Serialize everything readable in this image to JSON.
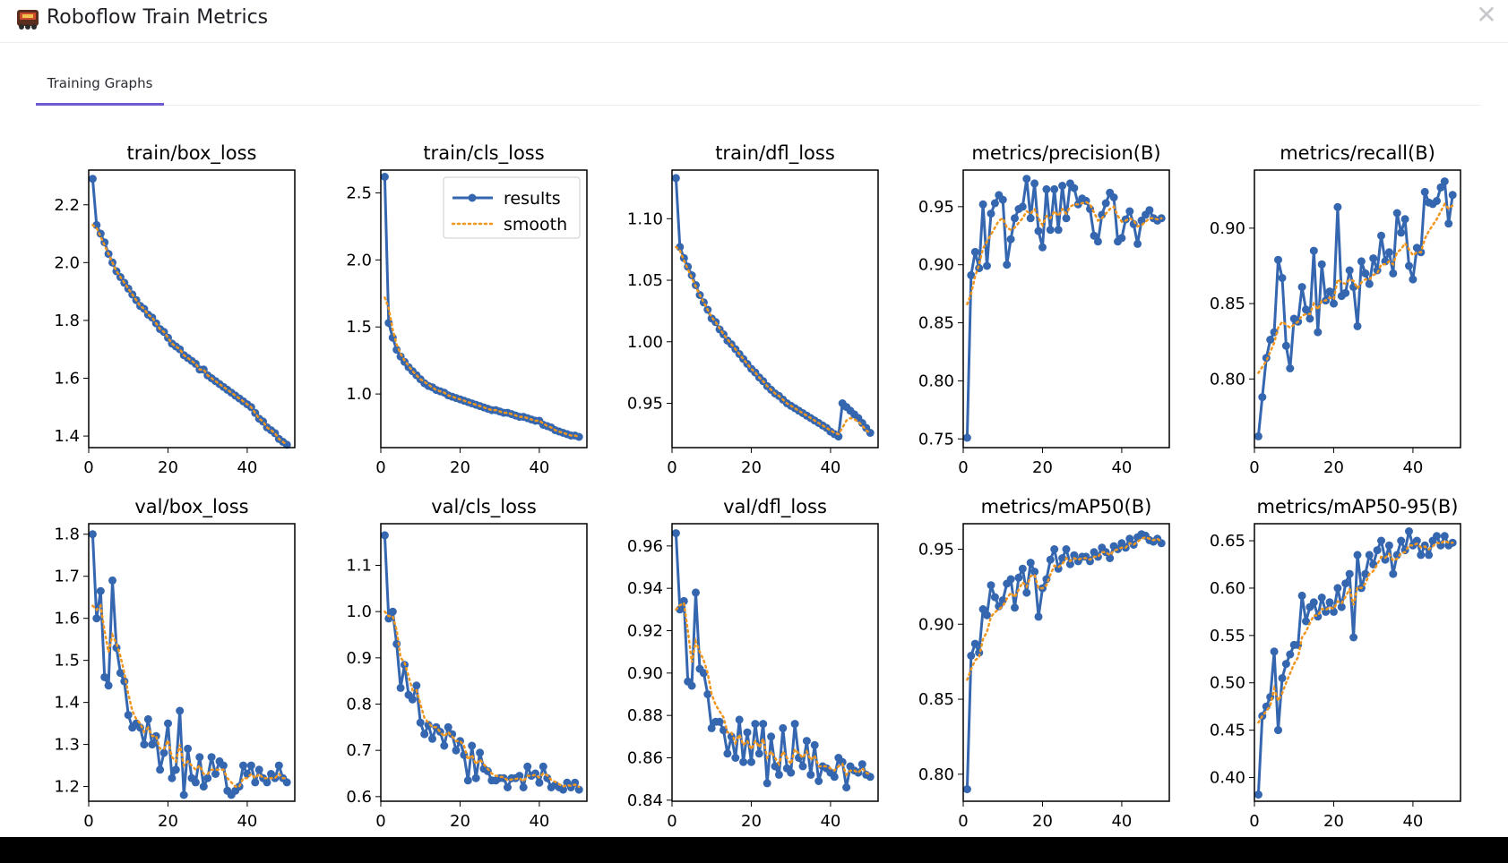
{
  "window": {
    "title": "Roboflow Train Metrics",
    "close_label": "✕",
    "app_icon": "roboflow-logo-icon"
  },
  "tabs": [
    {
      "label": "Training Graphs",
      "active": true
    }
  ],
  "colors": {
    "results": "#3566b0",
    "smooth": "#f0961e",
    "accent": "#6f5ad6"
  },
  "legend": {
    "results_label": "results",
    "smooth_label": "smooth"
  },
  "chart_data": [
    {
      "type": "line",
      "title": "train/box_loss",
      "xlim": [
        0,
        52
      ],
      "ylim": [
        1.36,
        2.32
      ],
      "xticks": [
        0,
        20,
        40
      ],
      "yticks": [
        1.4,
        1.6,
        1.8,
        2.0,
        2.2
      ],
      "ytick_labels": [
        "1.4",
        "1.6",
        "1.8",
        "2.0",
        "2.2"
      ],
      "results": [
        2.29,
        2.13,
        2.1,
        2.07,
        2.03,
        2.0,
        1.97,
        1.95,
        1.93,
        1.91,
        1.89,
        1.87,
        1.85,
        1.84,
        1.82,
        1.81,
        1.79,
        1.77,
        1.76,
        1.74,
        1.72,
        1.71,
        1.7,
        1.68,
        1.67,
        1.66,
        1.65,
        1.63,
        1.63,
        1.61,
        1.6,
        1.59,
        1.58,
        1.57,
        1.56,
        1.55,
        1.54,
        1.53,
        1.52,
        1.51,
        1.5,
        1.48,
        1.46,
        1.45,
        1.43,
        1.42,
        1.41,
        1.39,
        1.38,
        1.37
      ],
      "smooth": [
        2.13,
        2.12,
        2.09,
        2.06,
        2.03,
        2.0,
        1.97,
        1.95,
        1.93,
        1.91,
        1.89,
        1.87,
        1.85,
        1.84,
        1.82,
        1.81,
        1.79,
        1.77,
        1.76,
        1.74,
        1.72,
        1.71,
        1.7,
        1.68,
        1.67,
        1.66,
        1.65,
        1.63,
        1.63,
        1.61,
        1.6,
        1.59,
        1.58,
        1.57,
        1.56,
        1.55,
        1.54,
        1.53,
        1.52,
        1.51,
        1.5,
        1.48,
        1.46,
        1.45,
        1.43,
        1.42,
        1.41,
        1.39,
        1.38,
        1.37
      ]
    },
    {
      "type": "line",
      "title": "train/cls_loss",
      "xlim": [
        0,
        52
      ],
      "ylim": [
        0.6,
        2.67
      ],
      "xticks": [
        0,
        20,
        40
      ],
      "yticks": [
        1.0,
        1.5,
        2.0,
        2.5
      ],
      "ytick_labels": [
        "1.0",
        "1.5",
        "2.0",
        "2.5"
      ],
      "legend": true,
      "results": [
        2.62,
        1.53,
        1.42,
        1.33,
        1.28,
        1.24,
        1.2,
        1.17,
        1.14,
        1.11,
        1.08,
        1.06,
        1.05,
        1.03,
        1.02,
        1.01,
        0.99,
        0.98,
        0.97,
        0.96,
        0.95,
        0.94,
        0.93,
        0.92,
        0.91,
        0.9,
        0.89,
        0.88,
        0.88,
        0.87,
        0.86,
        0.86,
        0.85,
        0.84,
        0.83,
        0.83,
        0.82,
        0.81,
        0.8,
        0.8,
        0.77,
        0.76,
        0.75,
        0.73,
        0.72,
        0.71,
        0.7,
        0.69,
        0.69,
        0.68
      ],
      "smooth": [
        1.72,
        1.64,
        1.48,
        1.37,
        1.3,
        1.25,
        1.21,
        1.17,
        1.14,
        1.11,
        1.09,
        1.07,
        1.05,
        1.03,
        1.02,
        1.01,
        0.99,
        0.98,
        0.97,
        0.96,
        0.95,
        0.94,
        0.93,
        0.92,
        0.91,
        0.9,
        0.89,
        0.88,
        0.88,
        0.87,
        0.86,
        0.86,
        0.85,
        0.84,
        0.83,
        0.83,
        0.82,
        0.81,
        0.8,
        0.8,
        0.78,
        0.76,
        0.75,
        0.73,
        0.72,
        0.71,
        0.7,
        0.69,
        0.69,
        0.68
      ]
    },
    {
      "type": "line",
      "title": "train/dfl_loss",
      "xlim": [
        0,
        52
      ],
      "ylim": [
        0.914,
        1.1395
      ],
      "xticks": [
        0,
        20,
        40
      ],
      "yticks": [
        0.95,
        1.0,
        1.05,
        1.1
      ],
      "ytick_labels": [
        "0.95",
        "1.00",
        "1.05",
        "1.10"
      ],
      "results": [
        1.133,
        1.077,
        1.068,
        1.061,
        1.054,
        1.046,
        1.038,
        1.032,
        1.026,
        1.019,
        1.016,
        1.01,
        1.006,
        1.001,
        0.998,
        0.994,
        0.99,
        0.986,
        0.982,
        0.978,
        0.975,
        0.971,
        0.968,
        0.964,
        0.961,
        0.958,
        0.956,
        0.953,
        0.95,
        0.948,
        0.946,
        0.944,
        0.942,
        0.94,
        0.938,
        0.936,
        0.934,
        0.932,
        0.93,
        0.927,
        0.925,
        0.923,
        0.95,
        0.947,
        0.944,
        0.941,
        0.938,
        0.934,
        0.93,
        0.926
      ],
      "smooth": [
        1.077,
        1.074,
        1.066,
        1.059,
        1.052,
        1.045,
        1.038,
        1.032,
        1.026,
        1.02,
        1.016,
        1.011,
        1.006,
        1.002,
        0.998,
        0.994,
        0.99,
        0.986,
        0.982,
        0.978,
        0.975,
        0.971,
        0.968,
        0.964,
        0.961,
        0.958,
        0.956,
        0.953,
        0.95,
        0.948,
        0.946,
        0.944,
        0.942,
        0.94,
        0.938,
        0.936,
        0.934,
        0.932,
        0.93,
        0.928,
        0.926,
        0.925,
        0.93,
        0.936,
        0.938,
        0.937,
        0.935,
        0.932,
        0.928,
        0.926
      ]
    },
    {
      "type": "line",
      "title": "metrics/precision(B)",
      "xlim": [
        0,
        52
      ],
      "ylim": [
        0.7425,
        0.9815
      ],
      "xticks": [
        0,
        20,
        40
      ],
      "yticks": [
        0.75,
        0.8,
        0.85,
        0.9,
        0.95
      ],
      "ytick_labels": [
        "0.75",
        "0.80",
        "0.85",
        "0.90",
        "0.95"
      ],
      "results": [
        0.751,
        0.891,
        0.911,
        0.897,
        0.952,
        0.899,
        0.944,
        0.953,
        0.96,
        0.956,
        0.9,
        0.922,
        0.94,
        0.948,
        0.95,
        0.974,
        0.94,
        0.97,
        0.929,
        0.915,
        0.965,
        0.93,
        0.965,
        0.93,
        0.968,
        0.94,
        0.97,
        0.966,
        0.952,
        0.957,
        0.955,
        0.948,
        0.925,
        0.92,
        0.943,
        0.953,
        0.962,
        0.958,
        0.92,
        0.923,
        0.939,
        0.946,
        0.935,
        0.918,
        0.938,
        0.943,
        0.947,
        0.94,
        0.938,
        0.94
      ],
      "smooth": [
        0.866,
        0.875,
        0.89,
        0.9,
        0.914,
        0.92,
        0.926,
        0.932,
        0.938,
        0.94,
        0.932,
        0.93,
        0.932,
        0.936,
        0.94,
        0.946,
        0.944,
        0.948,
        0.94,
        0.934,
        0.942,
        0.94,
        0.946,
        0.942,
        0.948,
        0.944,
        0.95,
        0.952,
        0.952,
        0.953,
        0.954,
        0.952,
        0.945,
        0.938,
        0.94,
        0.944,
        0.948,
        0.95,
        0.942,
        0.937,
        0.938,
        0.94,
        0.938,
        0.933,
        0.934,
        0.937,
        0.94,
        0.94,
        0.939,
        0.94
      ]
    },
    {
      "type": "line",
      "title": "metrics/recall(B)",
      "xlim": [
        0,
        52
      ],
      "ylim": [
        0.7545,
        0.9385
      ],
      "xticks": [
        0,
        20,
        40
      ],
      "yticks": [
        0.8,
        0.85,
        0.9
      ],
      "ytick_labels": [
        "0.80",
        "0.85",
        "0.90"
      ],
      "results": [
        0.762,
        0.788,
        0.814,
        0.826,
        0.831,
        0.879,
        0.867,
        0.822,
        0.807,
        0.84,
        0.838,
        0.861,
        0.846,
        0.84,
        0.885,
        0.831,
        0.876,
        0.852,
        0.858,
        0.85,
        0.914,
        0.855,
        0.857,
        0.872,
        0.861,
        0.835,
        0.878,
        0.87,
        0.863,
        0.88,
        0.872,
        0.895,
        0.878,
        0.884,
        0.87,
        0.91,
        0.897,
        0.906,
        0.875,
        0.866,
        0.887,
        0.884,
        0.924,
        0.917,
        0.916,
        0.918,
        0.927,
        0.931,
        0.903,
        0.922
      ],
      "smooth": [
        0.804,
        0.808,
        0.812,
        0.818,
        0.824,
        0.834,
        0.838,
        0.836,
        0.834,
        0.836,
        0.838,
        0.842,
        0.843,
        0.843,
        0.85,
        0.846,
        0.852,
        0.852,
        0.854,
        0.853,
        0.866,
        0.864,
        0.863,
        0.866,
        0.865,
        0.86,
        0.864,
        0.866,
        0.866,
        0.869,
        0.87,
        0.876,
        0.876,
        0.878,
        0.876,
        0.884,
        0.886,
        0.89,
        0.886,
        0.882,
        0.884,
        0.884,
        0.893,
        0.898,
        0.902,
        0.906,
        0.911,
        0.916,
        0.913,
        0.915
      ]
    },
    {
      "type": "line",
      "title": "val/box_loss",
      "xlim": [
        0,
        52
      ],
      "ylim": [
        1.165,
        1.825
      ],
      "xticks": [
        0,
        20,
        40
      ],
      "yticks": [
        1.2,
        1.3,
        1.4,
        1.5,
        1.6,
        1.7,
        1.8
      ],
      "ytick_labels": [
        "1.2",
        "1.3",
        "1.4",
        "1.5",
        "1.6",
        "1.7",
        "1.8"
      ],
      "results": [
        1.8,
        1.6,
        1.665,
        1.46,
        1.44,
        1.69,
        1.53,
        1.47,
        1.45,
        1.37,
        1.34,
        1.35,
        1.34,
        1.3,
        1.36,
        1.3,
        1.32,
        1.24,
        1.28,
        1.35,
        1.22,
        1.24,
        1.38,
        1.18,
        1.29,
        1.22,
        1.21,
        1.27,
        1.2,
        1.22,
        1.27,
        1.23,
        1.26,
        1.25,
        1.19,
        1.18,
        1.19,
        1.2,
        1.25,
        1.23,
        1.25,
        1.21,
        1.24,
        1.22,
        1.21,
        1.23,
        1.22,
        1.25,
        1.22,
        1.21
      ],
      "smooth": [
        1.63,
        1.62,
        1.63,
        1.57,
        1.52,
        1.56,
        1.54,
        1.51,
        1.47,
        1.42,
        1.38,
        1.36,
        1.35,
        1.33,
        1.34,
        1.32,
        1.32,
        1.29,
        1.29,
        1.31,
        1.27,
        1.26,
        1.3,
        1.25,
        1.26,
        1.25,
        1.24,
        1.25,
        1.23,
        1.23,
        1.24,
        1.24,
        1.24,
        1.24,
        1.22,
        1.21,
        1.2,
        1.2,
        1.22,
        1.22,
        1.23,
        1.22,
        1.23,
        1.22,
        1.22,
        1.22,
        1.22,
        1.23,
        1.22,
        1.22
      ]
    },
    {
      "type": "line",
      "title": "val/cls_loss",
      "xlim": [
        0,
        52
      ],
      "ylim": [
        0.59,
        1.19
      ],
      "xticks": [
        0,
        20,
        40
      ],
      "yticks": [
        0.6,
        0.7,
        0.8,
        0.9,
        1.0,
        1.1
      ],
      "ytick_labels": [
        "0.6",
        "0.7",
        "0.8",
        "0.9",
        "1.0",
        "1.1"
      ],
      "results": [
        1.165,
        0.985,
        1.0,
        0.93,
        0.835,
        0.885,
        0.82,
        0.81,
        0.84,
        0.76,
        0.735,
        0.755,
        0.725,
        0.75,
        0.74,
        0.71,
        0.75,
        0.735,
        0.7,
        0.72,
        0.69,
        0.635,
        0.71,
        0.64,
        0.695,
        0.66,
        0.655,
        0.635,
        0.635,
        0.64,
        0.64,
        0.62,
        0.64,
        0.64,
        0.645,
        0.62,
        0.665,
        0.645,
        0.65,
        0.63,
        0.665,
        0.64,
        0.62,
        0.625,
        0.62,
        0.615,
        0.63,
        0.62,
        0.63,
        0.615
      ],
      "smooth": [
        1.0,
        0.99,
        0.99,
        0.96,
        0.9,
        0.89,
        0.86,
        0.83,
        0.83,
        0.8,
        0.77,
        0.76,
        0.75,
        0.75,
        0.74,
        0.73,
        0.74,
        0.73,
        0.72,
        0.72,
        0.71,
        0.68,
        0.69,
        0.67,
        0.68,
        0.67,
        0.66,
        0.65,
        0.645,
        0.643,
        0.642,
        0.635,
        0.637,
        0.638,
        0.64,
        0.633,
        0.645,
        0.645,
        0.647,
        0.641,
        0.65,
        0.646,
        0.636,
        0.632,
        0.627,
        0.622,
        0.625,
        0.623,
        0.626,
        0.621
      ]
    },
    {
      "type": "line",
      "title": "val/dfl_loss",
      "xlim": [
        0,
        52
      ],
      "ylim": [
        0.8395,
        0.9705
      ],
      "xticks": [
        0,
        20,
        40
      ],
      "yticks": [
        0.84,
        0.86,
        0.88,
        0.9,
        0.92,
        0.94,
        0.96
      ],
      "ytick_labels": [
        "0.84",
        "0.86",
        "0.88",
        "0.90",
        "0.92",
        "0.94",
        "0.96"
      ],
      "results": [
        0.966,
        0.93,
        0.934,
        0.896,
        0.894,
        0.938,
        0.902,
        0.9,
        0.89,
        0.874,
        0.877,
        0.877,
        0.873,
        0.862,
        0.87,
        0.86,
        0.878,
        0.858,
        0.872,
        0.858,
        0.876,
        0.862,
        0.876,
        0.848,
        0.87,
        0.856,
        0.852,
        0.874,
        0.855,
        0.853,
        0.876,
        0.86,
        0.856,
        0.868,
        0.852,
        0.866,
        0.849,
        0.856,
        0.855,
        0.853,
        0.851,
        0.86,
        0.858,
        0.846,
        0.856,
        0.854,
        0.853,
        0.857,
        0.852,
        0.851
      ],
      "smooth": [
        0.93,
        0.932,
        0.933,
        0.92,
        0.905,
        0.915,
        0.91,
        0.906,
        0.9,
        0.89,
        0.885,
        0.882,
        0.879,
        0.872,
        0.872,
        0.867,
        0.871,
        0.866,
        0.868,
        0.864,
        0.868,
        0.865,
        0.869,
        0.86,
        0.863,
        0.86,
        0.857,
        0.863,
        0.86,
        0.857,
        0.864,
        0.862,
        0.86,
        0.863,
        0.859,
        0.861,
        0.856,
        0.856,
        0.856,
        0.855,
        0.854,
        0.856,
        0.857,
        0.852,
        0.854,
        0.854,
        0.853,
        0.855,
        0.853,
        0.852
      ]
    },
    {
      "type": "line",
      "title": "metrics/mAP50(B)",
      "xlim": [
        0,
        52
      ],
      "ylim": [
        0.782,
        0.967
      ],
      "xticks": [
        0,
        20,
        40
      ],
      "yticks": [
        0.8,
        0.85,
        0.9,
        0.95
      ],
      "ytick_labels": [
        "0.80",
        "0.85",
        "0.90",
        "0.95"
      ],
      "results": [
        0.79,
        0.879,
        0.887,
        0.881,
        0.91,
        0.906,
        0.926,
        0.918,
        0.912,
        0.916,
        0.927,
        0.93,
        0.911,
        0.931,
        0.937,
        0.921,
        0.941,
        0.935,
        0.905,
        0.924,
        0.93,
        0.943,
        0.95,
        0.937,
        0.944,
        0.95,
        0.94,
        0.946,
        0.942,
        0.945,
        0.945,
        0.942,
        0.948,
        0.945,
        0.951,
        0.948,
        0.944,
        0.952,
        0.95,
        0.954,
        0.951,
        0.957,
        0.953,
        0.958,
        0.96,
        0.959,
        0.956,
        0.955,
        0.957,
        0.954
      ],
      "smooth": [
        0.863,
        0.87,
        0.876,
        0.878,
        0.89,
        0.895,
        0.905,
        0.908,
        0.91,
        0.912,
        0.917,
        0.921,
        0.918,
        0.923,
        0.928,
        0.925,
        0.932,
        0.933,
        0.924,
        0.924,
        0.926,
        0.933,
        0.939,
        0.938,
        0.94,
        0.944,
        0.942,
        0.944,
        0.943,
        0.944,
        0.944,
        0.943,
        0.945,
        0.945,
        0.948,
        0.948,
        0.946,
        0.949,
        0.95,
        0.951,
        0.951,
        0.954,
        0.953,
        0.955,
        0.957,
        0.958,
        0.957,
        0.956,
        0.957,
        0.955
      ]
    },
    {
      "type": "line",
      "title": "metrics/mAP50-95(B)",
      "xlim": [
        0,
        52
      ],
      "ylim": [
        0.375,
        0.668
      ],
      "xticks": [
        0,
        20,
        40
      ],
      "yticks": [
        0.4,
        0.45,
        0.5,
        0.55,
        0.6,
        0.65
      ],
      "ytick_labels": [
        "0.40",
        "0.45",
        "0.50",
        "0.55",
        "0.60",
        "0.65"
      ],
      "results": [
        0.382,
        0.465,
        0.475,
        0.485,
        0.533,
        0.45,
        0.505,
        0.52,
        0.53,
        0.54,
        0.54,
        0.592,
        0.565,
        0.58,
        0.585,
        0.57,
        0.59,
        0.575,
        0.585,
        0.575,
        0.6,
        0.58,
        0.605,
        0.615,
        0.548,
        0.635,
        0.6,
        0.615,
        0.635,
        0.625,
        0.64,
        0.65,
        0.63,
        0.645,
        0.615,
        0.635,
        0.65,
        0.64,
        0.66,
        0.645,
        0.65,
        0.635,
        0.645,
        0.635,
        0.65,
        0.655,
        0.645,
        0.655,
        0.645,
        0.648
      ],
      "smooth": [
        0.458,
        0.465,
        0.47,
        0.476,
        0.494,
        0.481,
        0.489,
        0.5,
        0.51,
        0.52,
        0.527,
        0.548,
        0.554,
        0.563,
        0.571,
        0.571,
        0.578,
        0.577,
        0.58,
        0.578,
        0.586,
        0.584,
        0.591,
        0.599,
        0.582,
        0.601,
        0.6,
        0.605,
        0.615,
        0.618,
        0.625,
        0.633,
        0.632,
        0.636,
        0.629,
        0.631,
        0.637,
        0.638,
        0.645,
        0.645,
        0.647,
        0.643,
        0.644,
        0.641,
        0.644,
        0.648,
        0.647,
        0.65,
        0.648,
        0.648
      ]
    }
  ]
}
